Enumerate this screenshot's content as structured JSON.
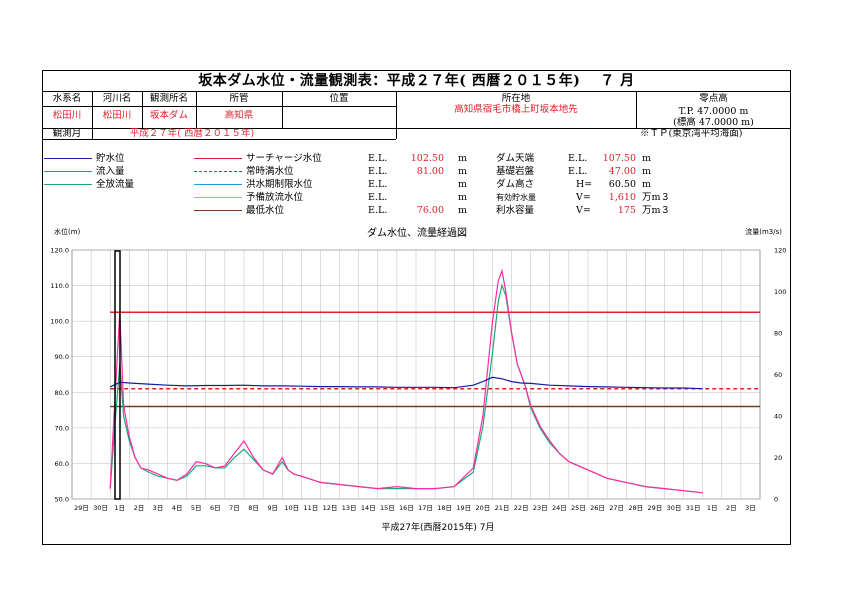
{
  "title": "坂本ダム水位・流量観測表：平成２７年( 西暦２０１５年)　 ７ 月",
  "info": {
    "headers": [
      "水系名",
      "河川名",
      "観測所名",
      "所管",
      "位置",
      "所在地",
      "零点高"
    ],
    "values": [
      "松田川",
      "松田川",
      "坂本ダム",
      "高知県",
      "",
      "高知県宿毛市橋上町坂本地先"
    ],
    "zero_tp": "T.P. 47.0000 m",
    "zero_sub": "(標高 47.0000 m)",
    "period_label": "観測月",
    "period_value": "平成２７年( 西暦２０１５年)",
    "tp_note": "※ＴＰ(東京湾平均海面)"
  },
  "legend_left": [
    "貯水位",
    "流入量",
    "全放流量"
  ],
  "levels": [
    {
      "name": "サーチャージ水位",
      "el": "E.L.",
      "value": "102.50",
      "unit": "m"
    },
    {
      "name": "常時満水位",
      "el": "E.L.",
      "value": "81.00",
      "unit": "m"
    },
    {
      "name": "洪水期制限水位",
      "el": "E.L.",
      "value": "",
      "unit": "m"
    },
    {
      "name": "予備放流水位",
      "el": "E.L.",
      "value": "",
      "unit": "m"
    },
    {
      "name": "最低水位",
      "el": "E.L.",
      "value": "76.00",
      "unit": "m"
    }
  ],
  "specs": [
    {
      "name": "ダム天端",
      "k": "E.L.",
      "v": "107.50",
      "u": "m"
    },
    {
      "name": "基礎岩盤",
      "k": "E.L.",
      "v": "47.00",
      "u": "m"
    },
    {
      "name": "ダム高さ",
      "k": "H=",
      "v": "60.50",
      "u": "m"
    },
    {
      "name": "有効貯水量",
      "k": "V=",
      "v": "1,610",
      "u": "万m３"
    },
    {
      "name": "利水容量",
      "k": "V=",
      "v": "175",
      "u": "万m３"
    }
  ],
  "colors": {
    "stage": "#1a1aa0",
    "inflow": "#ff2aa8",
    "release": "#1aaa72",
    "surcharge": "#e0202a",
    "normal": "#e0202a",
    "flood": "#1aa0e0",
    "reserve": "#f09090",
    "min": "#7a3a10"
  },
  "chart_data": {
    "type": "line",
    "title": "ダム水位、流量経過図",
    "ylabel": "水位(m)",
    "y2label": "流量(m3/s)",
    "xlabel": "平成27年(西暦2015年) 7月",
    "ylim": [
      50,
      120
    ],
    "y2lim": [
      0,
      120
    ],
    "yticks": [
      "50.0",
      "60.0",
      "70.0",
      "80.0",
      "90.0",
      "100.0",
      "110.0",
      "120.0"
    ],
    "y2ticks": [
      "0",
      "20",
      "40",
      "60",
      "80",
      "100",
      "120"
    ],
    "xtick_labels": [
      "29日",
      "30日",
      "1日",
      "2日",
      "3日",
      "4日",
      "5日",
      "6日",
      "7日",
      "8日",
      "9日",
      "10日",
      "11日",
      "12日",
      "13日",
      "14日",
      "15日",
      "16日",
      "17日",
      "18日",
      "19日",
      "20日",
      "21日",
      "22日",
      "23日",
      "24日",
      "25日",
      "26日",
      "27日",
      "28日",
      "29日",
      "30日",
      "31日",
      "1日",
      "2日",
      "3日"
    ],
    "hlines": [
      {
        "name": "サーチャージ水位",
        "value": 102.5
      },
      {
        "name": "常時満水位",
        "value": 81.0
      },
      {
        "name": "最低水位",
        "value": 76.0
      }
    ],
    "series": [
      {
        "name": "貯水位",
        "axis": "left",
        "x": [
          1.0,
          1.5,
          2.0,
          3,
          4,
          5,
          6,
          7,
          8,
          9,
          10,
          11,
          12,
          13,
          14,
          15,
          16,
          17,
          18,
          19,
          20,
          20.5,
          21,
          21.5,
          22,
          22.5,
          23,
          24,
          25,
          26,
          27,
          28,
          29,
          30,
          31,
          32
        ],
        "y": [
          81.5,
          82.8,
          82.6,
          82.3,
          82.0,
          81.8,
          81.9,
          81.9,
          82.0,
          81.8,
          81.8,
          81.7,
          81.6,
          81.6,
          81.5,
          81.5,
          81.4,
          81.4,
          81.4,
          81.3,
          82.0,
          83.0,
          84.2,
          83.8,
          83.0,
          82.6,
          82.5,
          82.0,
          81.8,
          81.6,
          81.5,
          81.4,
          81.3,
          81.2,
          81.2,
          81.0
        ]
      },
      {
        "name": "流入量",
        "axis": "right",
        "x": [
          1.0,
          1.2,
          1.5,
          1.7,
          2.0,
          2.3,
          2.6,
          3.0,
          3.5,
          4,
          4.5,
          5,
          5.5,
          6,
          6.5,
          7,
          7.5,
          8,
          8.5,
          9,
          9.5,
          10,
          10.3,
          10.6,
          11,
          12,
          13,
          14,
          15,
          16,
          17,
          18,
          19,
          20,
          20.5,
          21,
          21.3,
          21.5,
          21.7,
          22,
          22.3,
          22.7,
          23,
          23.5,
          24,
          24.5,
          25,
          26,
          27,
          28,
          29,
          30,
          31,
          32
        ],
        "y": [
          5,
          40,
          90,
          45,
          30,
          20,
          15,
          14,
          12,
          10,
          9,
          12,
          18,
          17,
          15,
          16,
          22,
          28,
          20,
          14,
          12,
          20,
          14,
          12,
          11,
          8,
          7,
          6,
          5,
          6,
          5,
          5,
          6,
          15,
          40,
          85,
          105,
          110,
          100,
          80,
          65,
          55,
          45,
          35,
          28,
          22,
          18,
          14,
          10,
          8,
          6,
          5,
          4,
          3
        ]
      },
      {
        "name": "全放流量",
        "axis": "right",
        "x": [
          1.0,
          1.2,
          1.5,
          1.7,
          2.0,
          2.3,
          2.6,
          3.0,
          3.5,
          4,
          4.5,
          5,
          5.5,
          6,
          6.5,
          7,
          7.5,
          8,
          8.5,
          9,
          9.5,
          10,
          10.3,
          10.6,
          11,
          12,
          13,
          14,
          15,
          16,
          17,
          18,
          19,
          20,
          20.5,
          21,
          21.3,
          21.5,
          21.7,
          22,
          22.3,
          22.7,
          23,
          23.5,
          24,
          24.5,
          25,
          26,
          27,
          28,
          29,
          30,
          31,
          32
        ],
        "y": [
          5,
          30,
          65,
          40,
          28,
          20,
          15,
          13,
          11,
          10,
          9,
          11,
          16,
          16,
          15,
          15,
          20,
          24,
          19,
          14,
          12,
          18,
          14,
          12,
          11,
          8,
          7,
          6,
          5,
          5,
          5,
          5,
          6,
          13,
          35,
          70,
          95,
          103,
          98,
          80,
          65,
          55,
          44,
          34,
          27,
          22,
          18,
          14,
          10,
          8,
          6,
          5,
          4,
          3
        ]
      }
    ]
  }
}
